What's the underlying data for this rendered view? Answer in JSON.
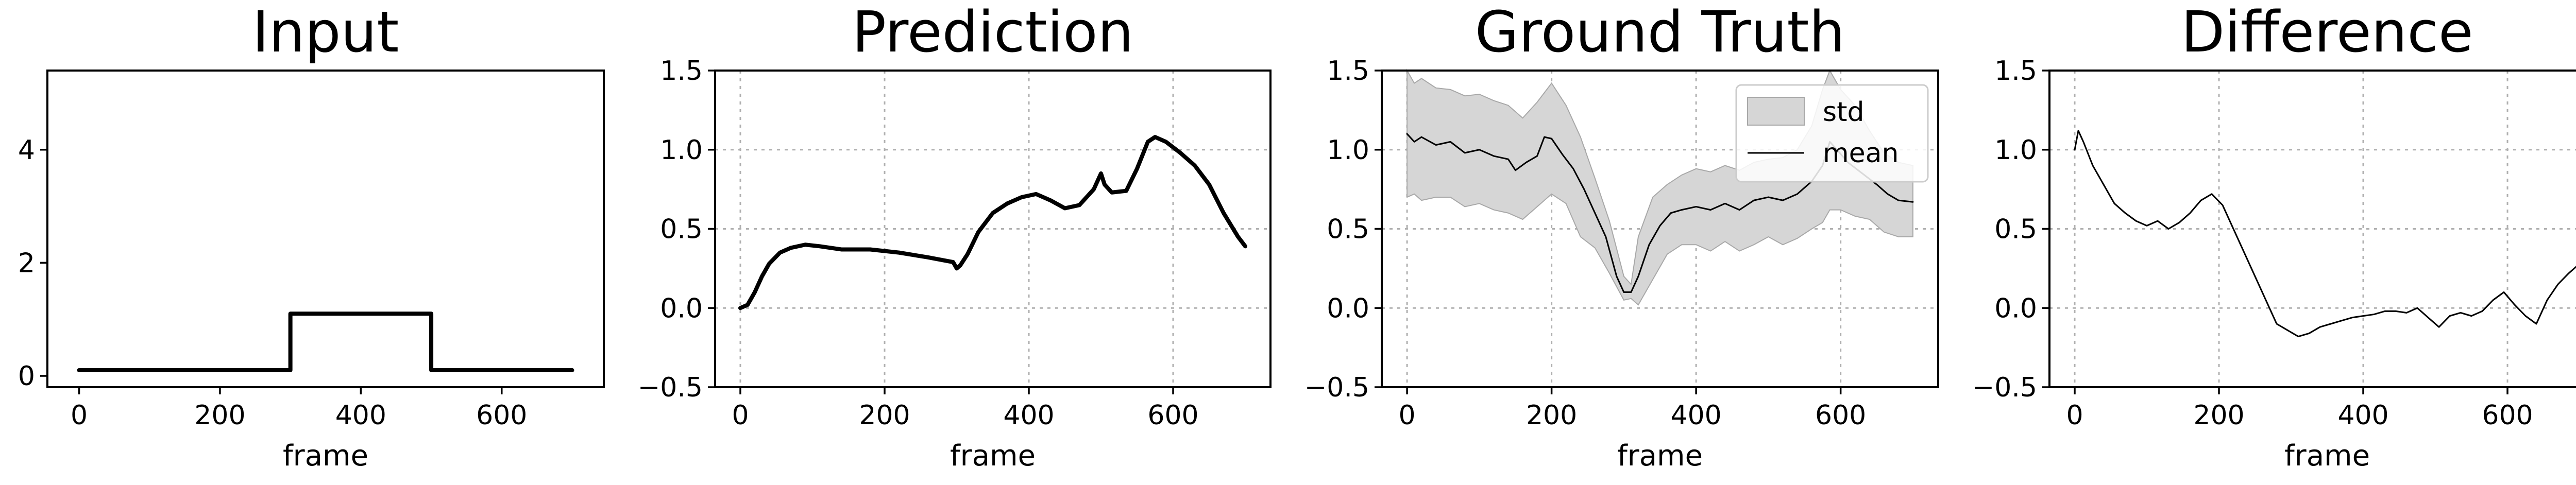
{
  "chart_data": [
    {
      "type": "line",
      "title": "Input",
      "xlabel": "frame",
      "ylabel": "",
      "xlim": [
        -45,
        745
      ],
      "ylim": [
        -0.2,
        5.4
      ],
      "xticks": [
        0,
        200,
        400,
        600
      ],
      "yticks": [
        0,
        2,
        4
      ],
      "grid": false,
      "series": [
        {
          "points": [
            [
              0,
              0.1
            ],
            [
              300,
              0.1
            ],
            [
              300,
              1.1
            ],
            [
              500,
              1.1
            ],
            [
              500,
              0.1
            ],
            [
              700,
              0.1
            ]
          ]
        }
      ]
    },
    {
      "type": "line",
      "title": "Prediction",
      "xlabel": "frame",
      "ylabel": "",
      "xlim": [
        -35,
        735
      ],
      "ylim": [
        -0.5,
        1.5
      ],
      "xticks": [
        0,
        200,
        400,
        600
      ],
      "yticks": [
        -0.5,
        0.0,
        0.5,
        1.0,
        1.5
      ],
      "grid": true,
      "series": [
        {
          "points": [
            [
              0,
              0.0
            ],
            [
              10,
              0.02
            ],
            [
              20,
              0.1
            ],
            [
              30,
              0.2
            ],
            [
              40,
              0.28
            ],
            [
              55,
              0.35
            ],
            [
              70,
              0.38
            ],
            [
              90,
              0.4
            ],
            [
              110,
              0.39
            ],
            [
              140,
              0.37
            ],
            [
              180,
              0.37
            ],
            [
              220,
              0.35
            ],
            [
              260,
              0.32
            ],
            [
              295,
              0.29
            ],
            [
              300,
              0.25
            ],
            [
              305,
              0.27
            ],
            [
              315,
              0.34
            ],
            [
              330,
              0.48
            ],
            [
              350,
              0.6
            ],
            [
              370,
              0.66
            ],
            [
              390,
              0.7
            ],
            [
              410,
              0.72
            ],
            [
              430,
              0.68
            ],
            [
              450,
              0.63
            ],
            [
              470,
              0.65
            ],
            [
              490,
              0.75
            ],
            [
              500,
              0.85
            ],
            [
              505,
              0.78
            ],
            [
              515,
              0.73
            ],
            [
              535,
              0.74
            ],
            [
              550,
              0.88
            ],
            [
              565,
              1.05
            ],
            [
              575,
              1.08
            ],
            [
              590,
              1.05
            ],
            [
              610,
              0.98
            ],
            [
              630,
              0.9
            ],
            [
              650,
              0.78
            ],
            [
              670,
              0.6
            ],
            [
              690,
              0.45
            ],
            [
              700,
              0.39
            ]
          ]
        }
      ]
    },
    {
      "type": "area",
      "title": "Ground Truth",
      "xlabel": "frame",
      "ylabel": "",
      "xlim": [
        -35,
        735
      ],
      "ylim": [
        -0.5,
        1.5
      ],
      "xticks": [
        0,
        200,
        400,
        600
      ],
      "yticks": [
        -0.5,
        0.0,
        0.5,
        1.0,
        1.5
      ],
      "grid": true,
      "legend_position": "top-right",
      "series": [
        {
          "name": "mean",
          "points": [
            [
              0,
              1.1
            ],
            [
              10,
              1.05
            ],
            [
              20,
              1.08
            ],
            [
              40,
              1.03
            ],
            [
              60,
              1.05
            ],
            [
              80,
              0.98
            ],
            [
              100,
              1.0
            ],
            [
              120,
              0.96
            ],
            [
              140,
              0.94
            ],
            [
              150,
              0.87
            ],
            [
              165,
              0.92
            ],
            [
              180,
              0.96
            ],
            [
              190,
              1.08
            ],
            [
              200,
              1.07
            ],
            [
              215,
              0.97
            ],
            [
              230,
              0.88
            ],
            [
              245,
              0.75
            ],
            [
              260,
              0.6
            ],
            [
              275,
              0.45
            ],
            [
              290,
              0.2
            ],
            [
              300,
              0.1
            ],
            [
              310,
              0.1
            ],
            [
              320,
              0.2
            ],
            [
              335,
              0.4
            ],
            [
              350,
              0.52
            ],
            [
              365,
              0.6
            ],
            [
              380,
              0.62
            ],
            [
              400,
              0.64
            ],
            [
              420,
              0.62
            ],
            [
              440,
              0.66
            ],
            [
              460,
              0.62
            ],
            [
              480,
              0.68
            ],
            [
              500,
              0.7
            ],
            [
              520,
              0.68
            ],
            [
              540,
              0.72
            ],
            [
              560,
              0.8
            ],
            [
              575,
              0.9
            ],
            [
              585,
              1.05
            ],
            [
              595,
              1.0
            ],
            [
              610,
              0.92
            ],
            [
              630,
              0.85
            ],
            [
              650,
              0.78
            ],
            [
              665,
              0.72
            ],
            [
              680,
              0.68
            ],
            [
              700,
              0.67
            ]
          ]
        },
        {
          "name": "std",
          "points_upper": [
            [
              0,
              1.5
            ],
            [
              10,
              1.42
            ],
            [
              20,
              1.45
            ],
            [
              40,
              1.39
            ],
            [
              60,
              1.38
            ],
            [
              80,
              1.34
            ],
            [
              100,
              1.35
            ],
            [
              120,
              1.31
            ],
            [
              140,
              1.28
            ],
            [
              160,
              1.2
            ],
            [
              180,
              1.3
            ],
            [
              200,
              1.42
            ],
            [
              220,
              1.28
            ],
            [
              240,
              1.08
            ],
            [
              260,
              0.82
            ],
            [
              280,
              0.55
            ],
            [
              300,
              0.2
            ],
            [
              310,
              0.15
            ],
            [
              320,
              0.45
            ],
            [
              340,
              0.7
            ],
            [
              360,
              0.78
            ],
            [
              380,
              0.84
            ],
            [
              400,
              0.88
            ],
            [
              420,
              0.86
            ],
            [
              440,
              0.9
            ],
            [
              460,
              0.87
            ],
            [
              480,
              0.92
            ],
            [
              500,
              0.94
            ],
            [
              520,
              0.95
            ],
            [
              540,
              1.0
            ],
            [
              560,
              1.15
            ],
            [
              575,
              1.38
            ],
            [
              585,
              1.5
            ],
            [
              600,
              1.38
            ],
            [
              620,
              1.28
            ],
            [
              640,
              1.12
            ],
            [
              660,
              0.98
            ],
            [
              680,
              0.92
            ],
            [
              700,
              0.9
            ]
          ],
          "points_lower": [
            [
              0,
              0.7
            ],
            [
              10,
              0.72
            ],
            [
              20,
              0.68
            ],
            [
              40,
              0.7
            ],
            [
              60,
              0.7
            ],
            [
              80,
              0.64
            ],
            [
              100,
              0.66
            ],
            [
              120,
              0.62
            ],
            [
              140,
              0.6
            ],
            [
              160,
              0.56
            ],
            [
              180,
              0.64
            ],
            [
              200,
              0.72
            ],
            [
              220,
              0.66
            ],
            [
              240,
              0.45
            ],
            [
              260,
              0.38
            ],
            [
              280,
              0.22
            ],
            [
              300,
              0.05
            ],
            [
              310,
              0.06
            ],
            [
              320,
              0.02
            ],
            [
              340,
              0.18
            ],
            [
              360,
              0.34
            ],
            [
              380,
              0.4
            ],
            [
              400,
              0.4
            ],
            [
              420,
              0.36
            ],
            [
              440,
              0.42
            ],
            [
              460,
              0.36
            ],
            [
              480,
              0.4
            ],
            [
              500,
              0.45
            ],
            [
              520,
              0.4
            ],
            [
              540,
              0.44
            ],
            [
              560,
              0.5
            ],
            [
              575,
              0.54
            ],
            [
              585,
              0.62
            ],
            [
              600,
              0.62
            ],
            [
              620,
              0.58
            ],
            [
              640,
              0.56
            ],
            [
              660,
              0.48
            ],
            [
              680,
              0.45
            ],
            [
              700,
              0.45
            ]
          ]
        }
      ]
    },
    {
      "type": "line",
      "title": "Difference",
      "xlabel": "frame",
      "ylabel": "",
      "xlim": [
        -35,
        735
      ],
      "ylim": [
        -0.5,
        1.5
      ],
      "xticks": [
        0,
        200,
        400,
        600
      ],
      "yticks": [
        -0.5,
        0.0,
        0.5,
        1.0,
        1.5
      ],
      "grid": true,
      "series": [
        {
          "points": [
            [
              0,
              1.0
            ],
            [
              5,
              1.12
            ],
            [
              12,
              1.05
            ],
            [
              25,
              0.9
            ],
            [
              40,
              0.78
            ],
            [
              55,
              0.66
            ],
            [
              70,
              0.6
            ],
            [
              85,
              0.55
            ],
            [
              100,
              0.52
            ],
            [
              115,
              0.55
            ],
            [
              130,
              0.5
            ],
            [
              145,
              0.54
            ],
            [
              160,
              0.6
            ],
            [
              175,
              0.68
            ],
            [
              190,
              0.72
            ],
            [
              205,
              0.65
            ],
            [
              220,
              0.5
            ],
            [
              235,
              0.35
            ],
            [
              250,
              0.2
            ],
            [
              265,
              0.05
            ],
            [
              280,
              -0.1
            ],
            [
              295,
              -0.14
            ],
            [
              310,
              -0.18
            ],
            [
              325,
              -0.16
            ],
            [
              340,
              -0.12
            ],
            [
              355,
              -0.1
            ],
            [
              370,
              -0.08
            ],
            [
              385,
              -0.06
            ],
            [
              400,
              -0.05
            ],
            [
              415,
              -0.04
            ],
            [
              430,
              -0.02
            ],
            [
              445,
              -0.02
            ],
            [
              460,
              -0.03
            ],
            [
              475,
              0.0
            ],
            [
              490,
              -0.06
            ],
            [
              505,
              -0.12
            ],
            [
              520,
              -0.05
            ],
            [
              535,
              -0.03
            ],
            [
              550,
              -0.05
            ],
            [
              565,
              -0.02
            ],
            [
              580,
              0.05
            ],
            [
              595,
              0.1
            ],
            [
              610,
              0.02
            ],
            [
              625,
              -0.05
            ],
            [
              640,
              -0.1
            ],
            [
              655,
              0.05
            ],
            [
              670,
              0.15
            ],
            [
              685,
              0.22
            ],
            [
              700,
              0.28
            ]
          ]
        }
      ]
    }
  ],
  "legend": {
    "std_label": "std",
    "mean_label": "mean"
  }
}
